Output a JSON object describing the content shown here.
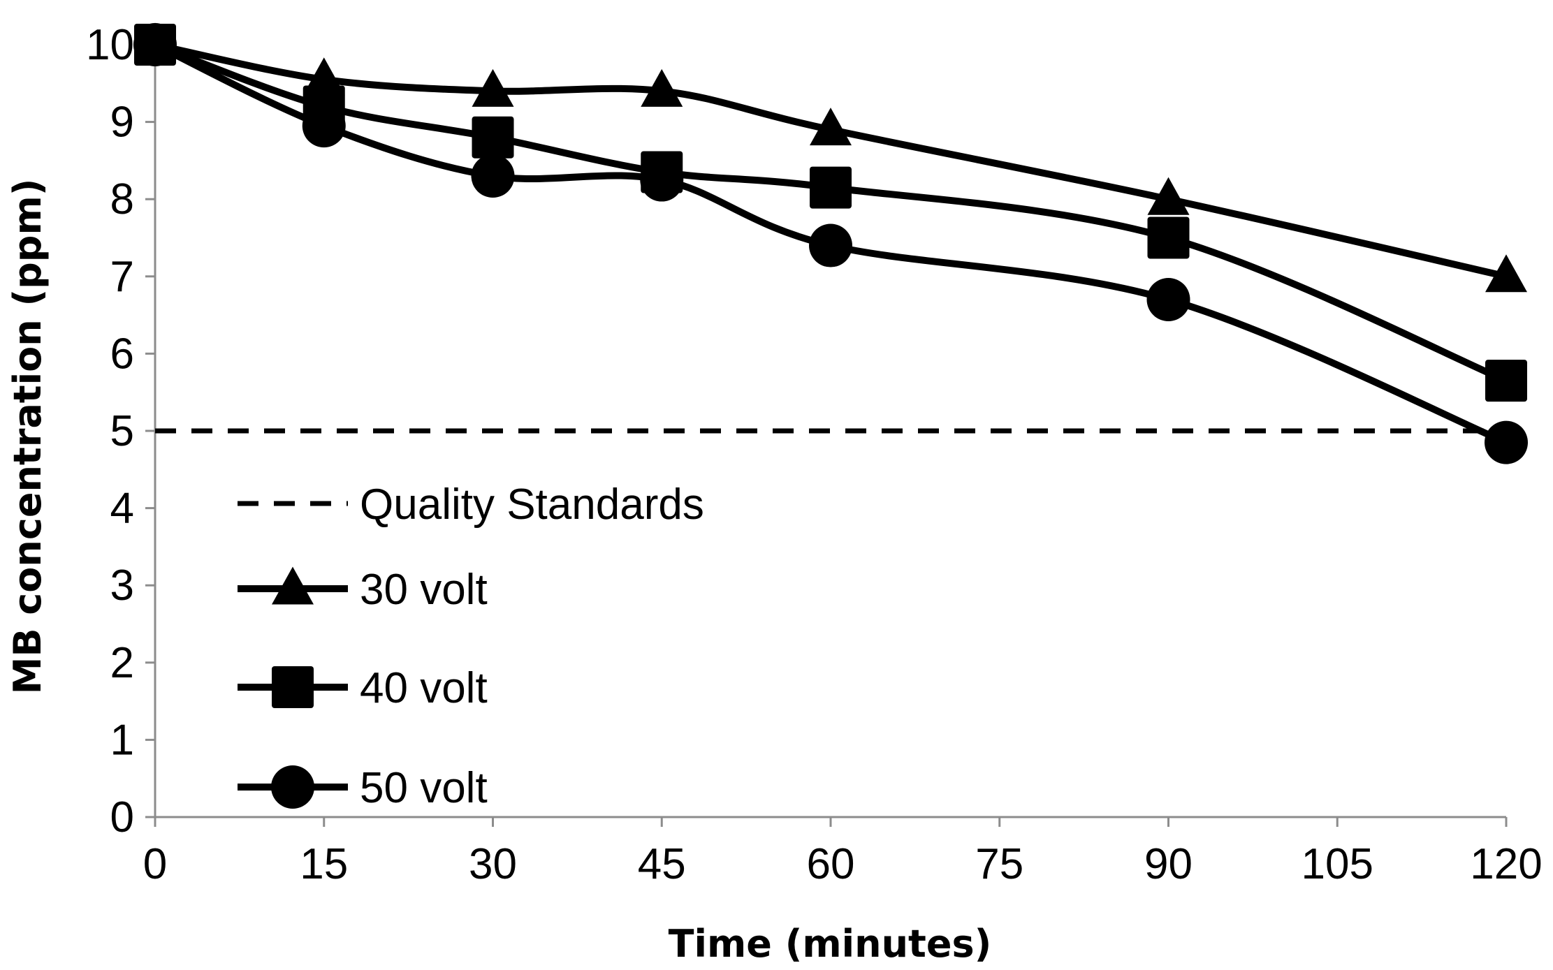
{
  "chart_data": {
    "type": "line",
    "xlabel": "Time (minutes)",
    "ylabel": "MB concentration (ppm)",
    "xlim": [
      0,
      120
    ],
    "ylim": [
      0,
      10
    ],
    "x_ticks": [
      0,
      15,
      30,
      45,
      60,
      75,
      90,
      105,
      120
    ],
    "y_ticks": [
      0,
      1,
      2,
      3,
      4,
      5,
      6,
      7,
      8,
      9,
      10
    ],
    "x": [
      0,
      15,
      30,
      45,
      60,
      90,
      120
    ],
    "grid": false,
    "legend_position": "bottom-left",
    "reference_line": {
      "name": "Quality Standards",
      "value": 5,
      "style": "dashed"
    },
    "series": [
      {
        "name": "30 volt",
        "marker": "triangle",
        "values": [
          10,
          9.55,
          9.4,
          9.4,
          8.9,
          8.0,
          7.0
        ]
      },
      {
        "name": "40 volt",
        "marker": "square",
        "values": [
          10,
          9.2,
          8.8,
          8.35,
          8.15,
          7.5,
          5.65
        ]
      },
      {
        "name": "50 volt",
        "marker": "circle",
        "values": [
          10,
          8.95,
          8.3,
          8.25,
          7.4,
          6.7,
          4.85
        ]
      }
    ],
    "colors": {
      "line": "#000000",
      "background": "#ffffff"
    }
  }
}
